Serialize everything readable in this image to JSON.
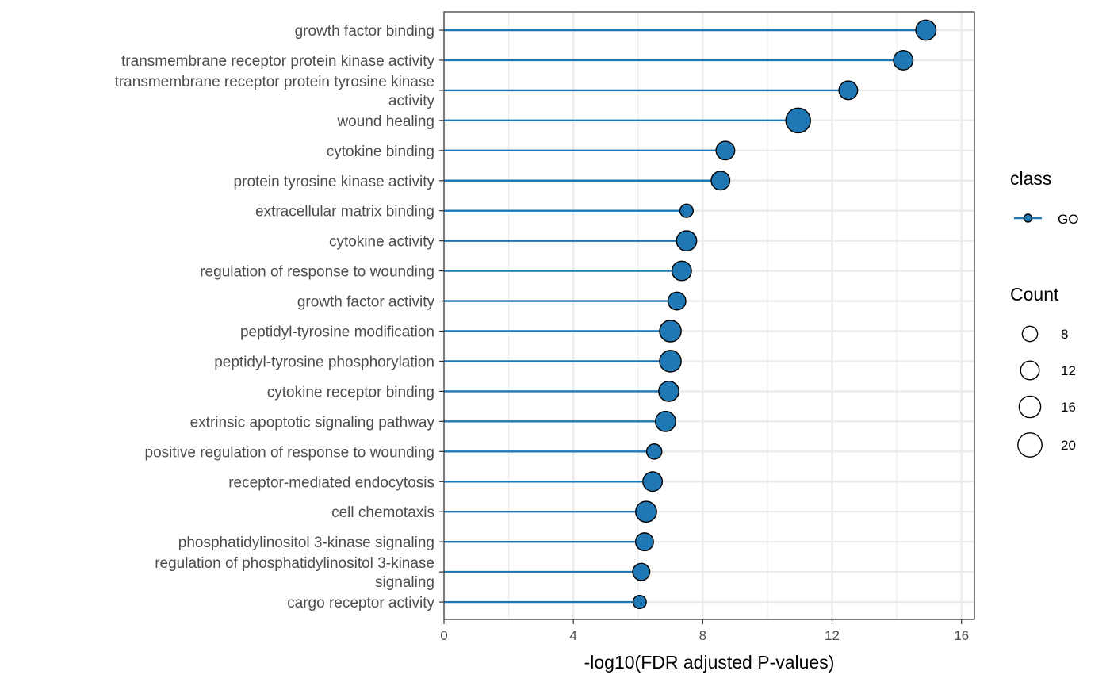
{
  "chart_data": {
    "type": "lollipop",
    "categories": [
      "growth factor binding",
      "transmembrane receptor protein kinase activity",
      "transmembrane receptor protein tyrosine kinase\nactivity",
      "wound healing",
      "cytokine binding",
      "protein tyrosine kinase activity",
      "extracellular matrix binding",
      "cytokine activity",
      "regulation of response to wounding",
      "growth factor activity",
      "peptidyl-tyrosine modification",
      "peptidyl-tyrosine phosphorylation",
      "cytokine receptor binding",
      "extrinsic apoptotic signaling pathway",
      "positive regulation of response to wounding",
      "receptor-mediated endocytosis",
      "cell chemotaxis",
      "phosphatidylinositol 3-kinase signaling",
      "regulation of phosphatidylinositol 3-kinase\nsignaling",
      "cargo receptor activity"
    ],
    "values": [
      14.9,
      14.2,
      12.5,
      10.95,
      8.7,
      8.55,
      7.5,
      7.5,
      7.35,
      7.2,
      7.0,
      7.0,
      6.95,
      6.85,
      6.5,
      6.45,
      6.25,
      6.2,
      6.1,
      6.05
    ],
    "counts": [
      14,
      13,
      12,
      21,
      12,
      12,
      6,
      14,
      13,
      11,
      16,
      16,
      14,
      14,
      8,
      13,
      15,
      11,
      10,
      6
    ],
    "xlabel": "-log10(FDR adjusted P-values)",
    "ylabel": "",
    "xlim": [
      0,
      16.4
    ],
    "x_ticks": [
      0,
      4,
      8,
      12,
      16
    ],
    "grid": true,
    "color": "#1f77b4",
    "legend": {
      "position": "right",
      "class_title": "class",
      "class_items": [
        "GO"
      ],
      "size_title": "Count",
      "size_breaks": [
        8,
        12,
        16,
        20
      ]
    }
  }
}
